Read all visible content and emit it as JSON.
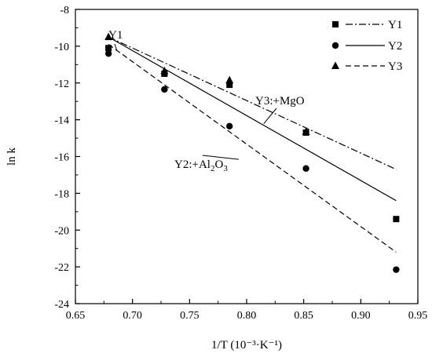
{
  "chart_data": {
    "type": "scatter",
    "xlabel": "1/T (10⁻³·K⁻¹)",
    "ylabel": "ln k",
    "xlim": [
      0.65,
      0.95
    ],
    "ylim": [
      -24,
      -8
    ],
    "x_ticks": [
      0.65,
      0.7,
      0.75,
      0.8,
      0.85,
      0.9,
      0.95
    ],
    "x_tick_labels": [
      "0.65",
      "0.70",
      "0.75",
      "0.80",
      "0.85",
      "0.90",
      "0.95"
    ],
    "y_ticks": [
      -24,
      -22,
      -20,
      -18,
      -16,
      -14,
      -12,
      -10,
      -8
    ],
    "y_tick_labels": [
      "-24",
      "-22",
      "-20",
      "-18",
      "-16",
      "-14",
      "-12",
      "-10",
      "-8"
    ],
    "grid": false,
    "legend_position": "top-right",
    "series": [
      {
        "name": "Y1",
        "marker": "square",
        "line_style": "dash-dot",
        "points": [
          {
            "x": 0.679,
            "y": -10.1
          },
          {
            "x": 0.728,
            "y": -11.5
          },
          {
            "x": 0.785,
            "y": -12.1
          },
          {
            "x": 0.852,
            "y": -14.7
          },
          {
            "x": 0.931,
            "y": -19.4
          }
        ],
        "fit": [
          {
            "x": 0.679,
            "y": -9.5
          },
          {
            "x": 0.931,
            "y": -16.7
          }
        ]
      },
      {
        "name": "Y2",
        "marker": "circle",
        "line_style": "solid",
        "points": [
          {
            "x": 0.679,
            "y": -10.4
          },
          {
            "x": 0.728,
            "y": -12.35
          },
          {
            "x": 0.785,
            "y": -14.35
          },
          {
            "x": 0.852,
            "y": -16.65
          },
          {
            "x": 0.931,
            "y": -22.15
          }
        ],
        "fit": [
          {
            "x": 0.679,
            "y": -9.5
          },
          {
            "x": 0.931,
            "y": -18.4
          }
        ]
      },
      {
        "name": "Y3",
        "marker": "triangle",
        "line_style": "dashed",
        "points": [
          {
            "x": 0.679,
            "y": -9.5
          },
          {
            "x": 0.728,
            "y": -11.35
          },
          {
            "x": 0.785,
            "y": -11.85
          },
          {
            "x": 0.852,
            "y": -14.65
          }
        ],
        "fit": [
          {
            "x": 0.679,
            "y": -9.9
          },
          {
            "x": 0.931,
            "y": -21.2
          }
        ]
      }
    ],
    "annotations": [
      {
        "text": "Y1",
        "target": {
          "x": 0.681,
          "y": -9.75
        }
      },
      {
        "text": "Y3:+MgO",
        "target": {
          "x": 0.815,
          "y": -14.3
        }
      },
      {
        "text": "Y2:+Al₂O₃",
        "target": {
          "x": 0.8,
          "y": -15.9
        }
      }
    ]
  }
}
